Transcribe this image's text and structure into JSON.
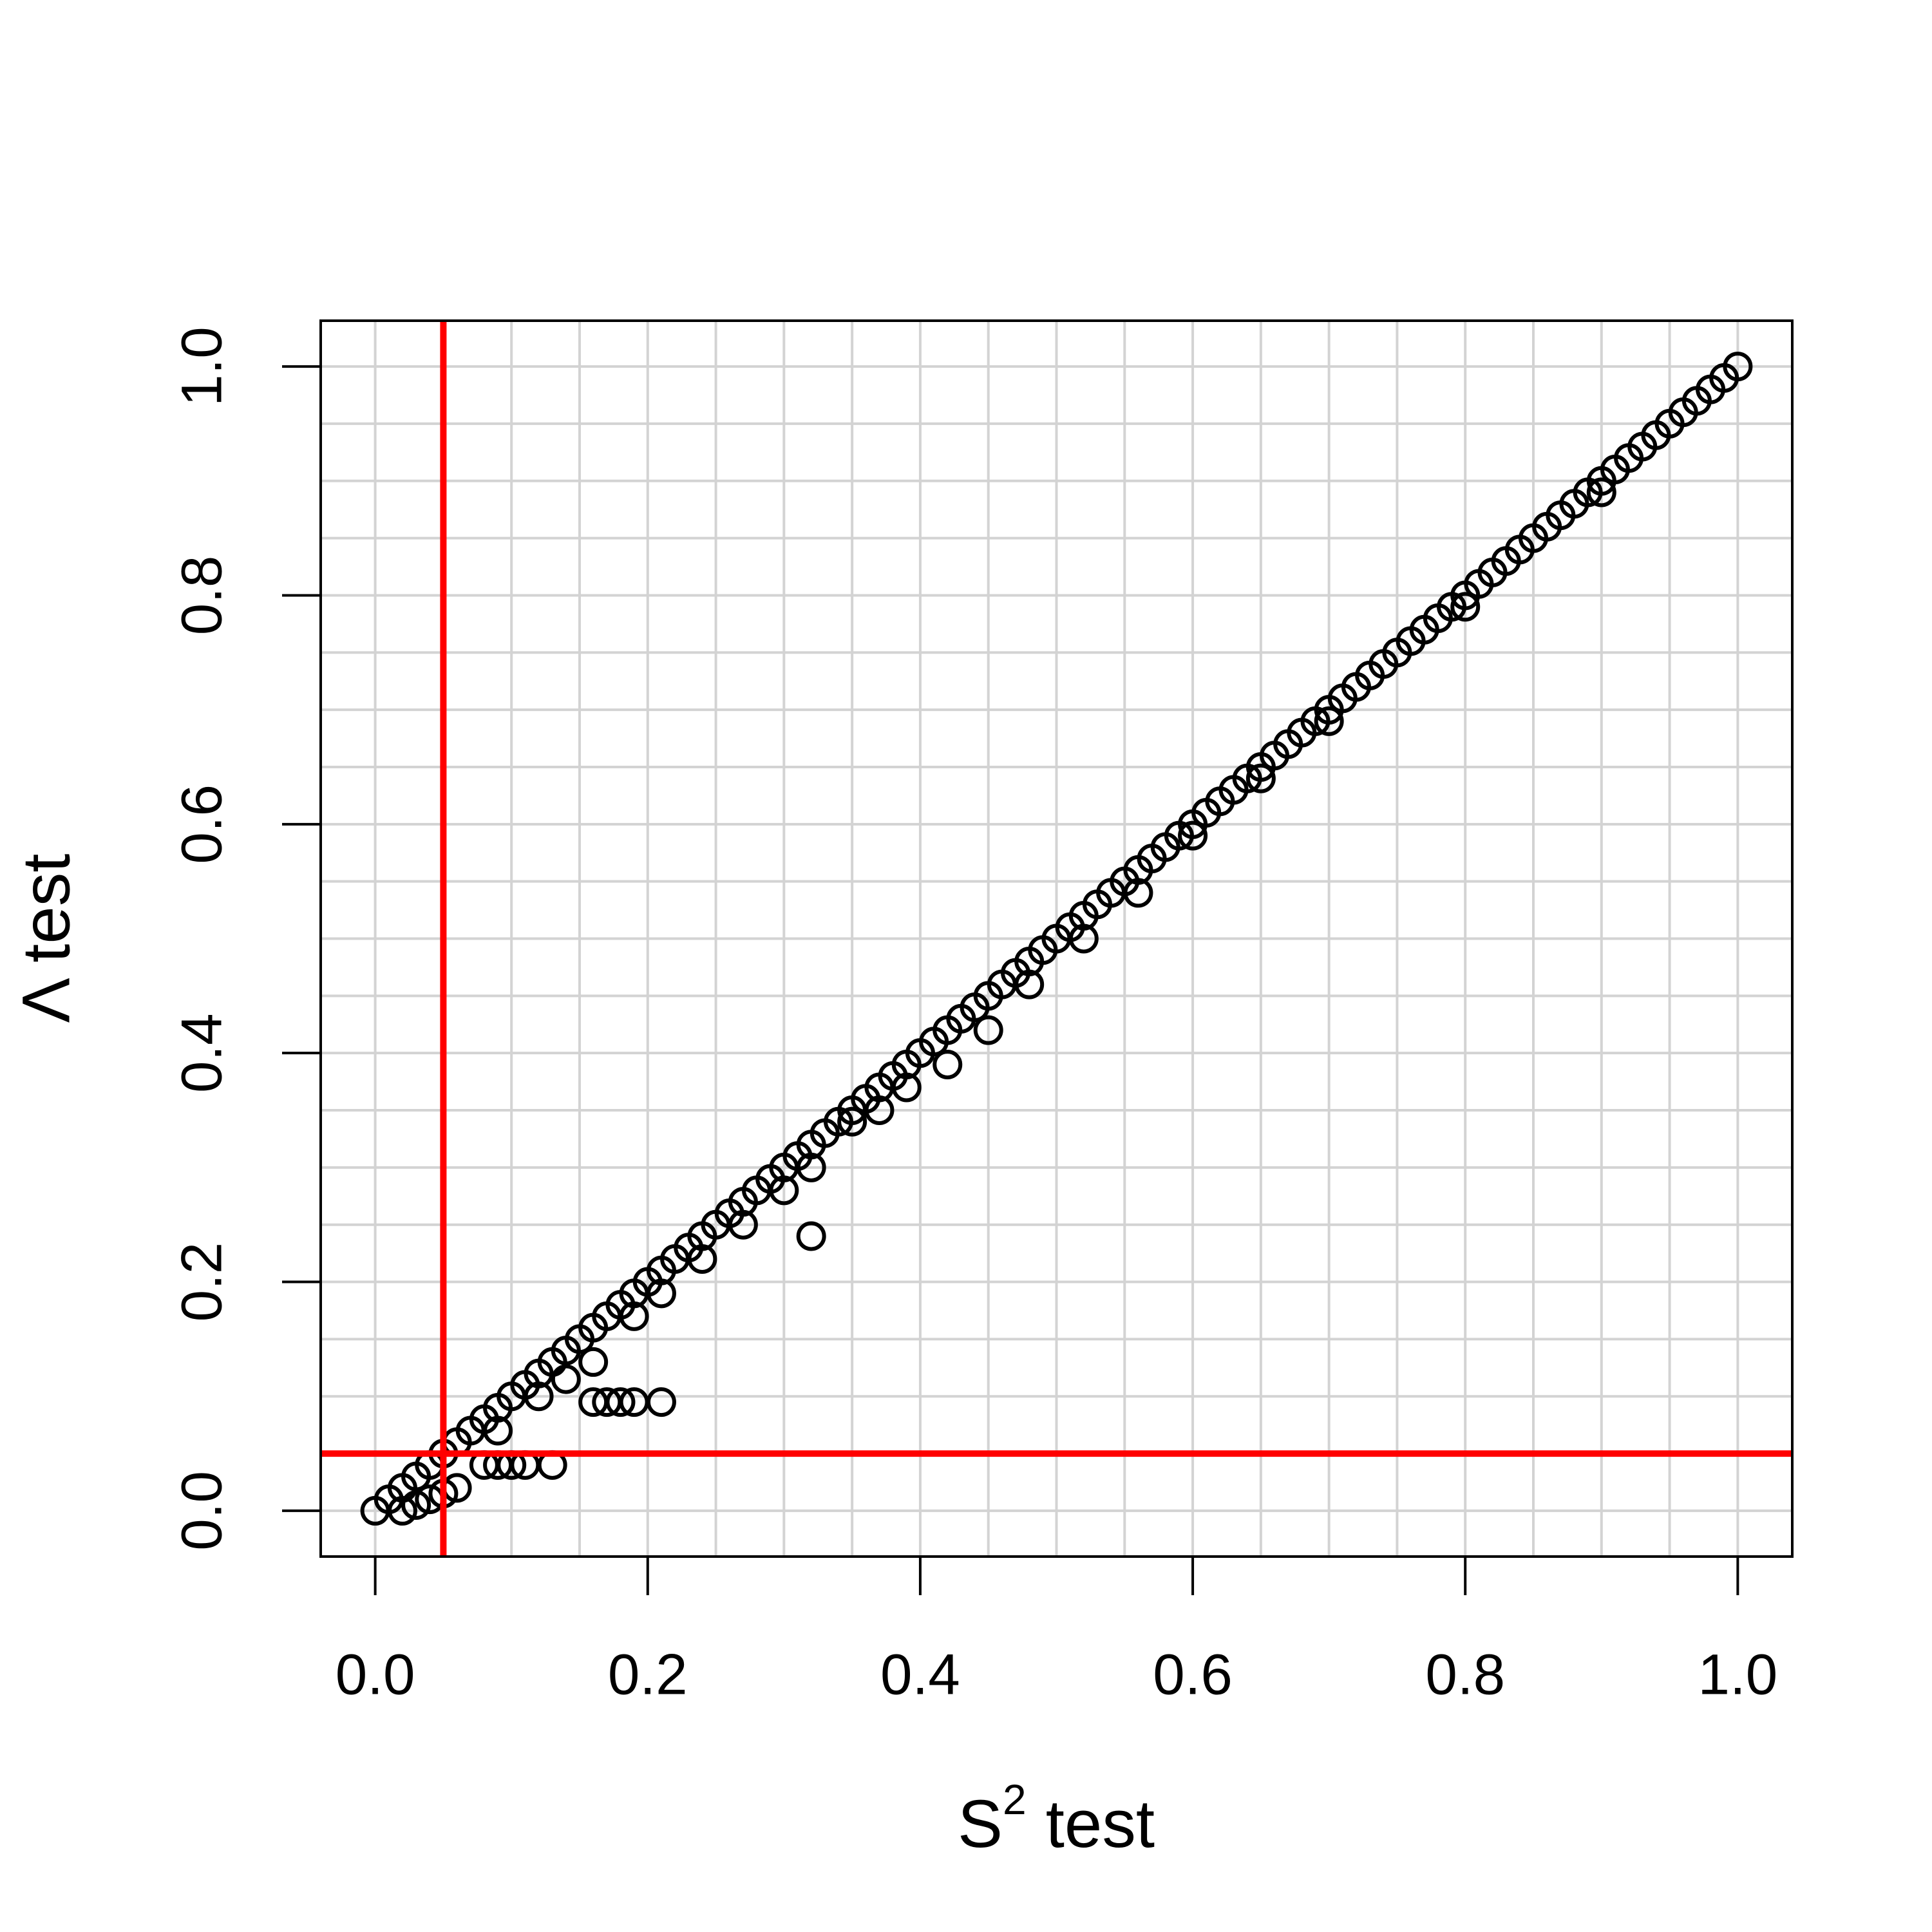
{
  "chart_data": {
    "type": "scatter",
    "x_label": {
      "base": "S",
      "superscript": "2",
      "rest": "test"
    },
    "y_label": "Λ test",
    "xlim": [
      -0.04,
      1.04
    ],
    "ylim": [
      -0.04,
      1.04
    ],
    "xticks": [
      {
        "value": 0,
        "label": "0.0"
      },
      0.2,
      0.4,
      0.6,
      0.8,
      {
        "value": 1,
        "label": "1.0"
      }
    ],
    "yticks": [
      {
        "value": 0,
        "label": "0.0"
      },
      0.2,
      0.4,
      0.6,
      0.8,
      {
        "value": 1,
        "label": "1.0"
      }
    ],
    "grid": true,
    "xgrid": [
      0,
      0.05,
      0.1,
      0.15,
      0.2,
      0.25,
      0.3,
      0.35,
      0.4,
      0.45,
      0.5,
      0.55,
      0.6,
      0.65,
      0.7,
      0.75,
      0.8,
      0.85,
      0.9,
      0.95,
      1
    ],
    "ygrid": [
      0,
      0.05,
      0.1,
      0.15,
      0.2,
      0.25,
      0.3,
      0.35,
      0.4,
      0.45,
      0.5,
      0.55,
      0.6,
      0.65,
      0.7,
      0.75,
      0.8,
      0.85,
      0.9,
      0.95,
      1
    ],
    "grid_color": "#d3d3d3",
    "point_color": "#000000",
    "reference_lines": {
      "x": 0.05,
      "y": 0.05,
      "color": "#ff0000"
    },
    "x": [
      0,
      0.01,
      0.02,
      0.03,
      0.04,
      0.05,
      0.06,
      0.07,
      0.08,
      0.09,
      0.1,
      0.11,
      0.12,
      0.13,
      0.14,
      0.15,
      0.16,
      0.17,
      0.18,
      0.19,
      0.2,
      0.21,
      0.22,
      0.23,
      0.24,
      0.25,
      0.26,
      0.27,
      0.28,
      0.29,
      0.3,
      0.31,
      0.32,
      0.33,
      0.34,
      0.35,
      0.36,
      0.37,
      0.38,
      0.39,
      0.4,
      0.41,
      0.42,
      0.43,
      0.44,
      0.45,
      0.46,
      0.47,
      0.48,
      0.49,
      0.5,
      0.51,
      0.52,
      0.53,
      0.54,
      0.55,
      0.56,
      0.57,
      0.58,
      0.59,
      0.6,
      0.61,
      0.62,
      0.63,
      0.64,
      0.65,
      0.66,
      0.67,
      0.68,
      0.69,
      0.7,
      0.71,
      0.72,
      0.73,
      0.74,
      0.75,
      0.76,
      0.77,
      0.78,
      0.79,
      0.8,
      0.81,
      0.82,
      0.83,
      0.84,
      0.85,
      0.86,
      0.87,
      0.88,
      0.89,
      0.9,
      0.91,
      0.92,
      0.93,
      0.94,
      0.95,
      0.96,
      0.97,
      0.98,
      0.99,
      1,
      0.02,
      0.03,
      0.04,
      0.05,
      0.06,
      0.08,
      0.09,
      0.1,
      0.11,
      0.13,
      0.09,
      0.12,
      0.14,
      0.16,
      0.17,
      0.18,
      0.19,
      0.21,
      0.16,
      0.19,
      0.21,
      0.24,
      0.27,
      0.3,
      0.32,
      0.32,
      0.35,
      0.37,
      0.39,
      0.42,
      0.45,
      0.48,
      0.52,
      0.56,
      0.6,
      0.65,
      0.7,
      0.8,
      0.9
    ],
    "y": [
      0,
      0.01,
      0.02,
      0.03,
      0.04,
      0.05,
      0.06,
      0.07,
      0.08,
      0.09,
      0.1,
      0.11,
      0.12,
      0.13,
      0.14,
      0.15,
      0.16,
      0.17,
      0.18,
      0.19,
      0.2,
      0.21,
      0.22,
      0.23,
      0.24,
      0.25,
      0.26,
      0.27,
      0.28,
      0.29,
      0.3,
      0.31,
      0.32,
      0.33,
      0.34,
      0.35,
      0.36,
      0.37,
      0.38,
      0.39,
      0.4,
      0.41,
      0.42,
      0.43,
      0.44,
      0.45,
      0.46,
      0.47,
      0.48,
      0.49,
      0.5,
      0.51,
      0.52,
      0.53,
      0.54,
      0.55,
      0.56,
      0.57,
      0.58,
      0.59,
      0.6,
      0.61,
      0.62,
      0.63,
      0.64,
      0.65,
      0.66,
      0.67,
      0.68,
      0.69,
      0.7,
      0.71,
      0.72,
      0.73,
      0.74,
      0.75,
      0.76,
      0.77,
      0.78,
      0.79,
      0.8,
      0.81,
      0.82,
      0.83,
      0.84,
      0.85,
      0.86,
      0.87,
      0.88,
      0.89,
      0.9,
      0.91,
      0.92,
      0.93,
      0.94,
      0.95,
      0.96,
      0.97,
      0.98,
      0.99,
      1,
      0,
      0.005,
      0.01,
      0.015,
      0.02,
      0.04,
      0.04,
      0.04,
      0.04,
      0.04,
      0.07,
      0.1,
      0.115,
      0.095,
      0.095,
      0.095,
      0.095,
      0.095,
      0.13,
      0.17,
      0.19,
      0.22,
      0.25,
      0.28,
      0.3,
      0.24,
      0.34,
      0.35,
      0.37,
      0.39,
      0.42,
      0.46,
      0.5,
      0.54,
      0.59,
      0.64,
      0.69,
      0.79,
      0.89
    ]
  }
}
